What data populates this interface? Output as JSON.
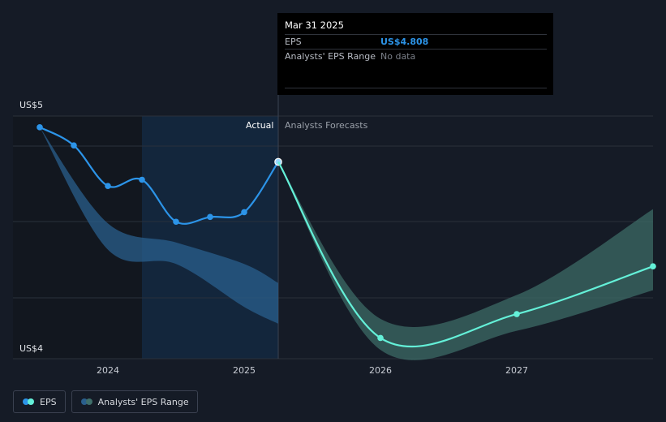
{
  "tooltip": {
    "date": "Mar 31 2025",
    "rows": [
      {
        "key": "EPS",
        "value": "US$4.808"
      },
      {
        "key": "Analysts' EPS Range",
        "value": "No data"
      }
    ]
  },
  "labels": {
    "y_top": "US$5",
    "y_bottom": "US$4",
    "actual": "Actual",
    "forecast": "Analysts Forecasts"
  },
  "legend": [
    {
      "label": "EPS",
      "color_a": "#2c94e8",
      "color_b": "#64f0d8"
    },
    {
      "label": "Analysts' EPS Range",
      "color_a": "#2a5f8c",
      "color_b": "#3f6f6a"
    }
  ],
  "colors": {
    "actual_line": "#2c94e8",
    "forecast_line": "#64f0d8",
    "actual_band": "#2a5f8c",
    "forecast_band": "#3f6f6a",
    "highlight": "#13263c",
    "grid": "#2a303b"
  },
  "chart_data": {
    "type": "line",
    "ylim": [
      4.0,
      5.0
    ],
    "y_ticks": [
      "US$4",
      "US$5"
    ],
    "x_ticks": [
      "2024",
      "2025",
      "2026",
      "2027"
    ],
    "x_tick_values": [
      2024.0,
      2025.0,
      2026.0,
      2027.0
    ],
    "xlim": [
      2023.0,
      2028.0
    ],
    "actual_end": 2025.25,
    "highlight_range": [
      2024.25,
      2025.25
    ],
    "series": [
      {
        "name": "EPS",
        "segment": "actual",
        "x": [
          2023.5,
          2023.75,
          2024.0,
          2024.25,
          2024.5,
          2024.75,
          2025.0,
          2025.25
        ],
        "y": [
          4.953,
          4.877,
          4.707,
          4.733,
          4.557,
          4.577,
          4.597,
          4.808
        ]
      },
      {
        "name": "EPS",
        "segment": "forecast",
        "x": [
          2025.25,
          2026.0,
          2027.0,
          2028.0
        ],
        "y": [
          4.808,
          4.07,
          4.17,
          4.37
        ]
      }
    ],
    "ranges": [
      {
        "name": "Analysts' EPS Range",
        "segment": "actual",
        "x": [
          2023.5,
          2024.0,
          2024.5,
          2025.0,
          2025.25
        ],
        "low": [
          4.953,
          4.44,
          4.38,
          4.2,
          4.13
        ],
        "high": [
          4.953,
          4.55,
          4.47,
          4.38,
          4.3
        ]
      },
      {
        "name": "Analysts' EPS Range",
        "segment": "forecast",
        "x": [
          2025.25,
          2026.0,
          2027.0,
          2028.0
        ],
        "low": [
          4.808,
          4.02,
          4.1,
          4.27
        ],
        "high": [
          4.808,
          4.15,
          4.25,
          4.61
        ]
      }
    ]
  }
}
